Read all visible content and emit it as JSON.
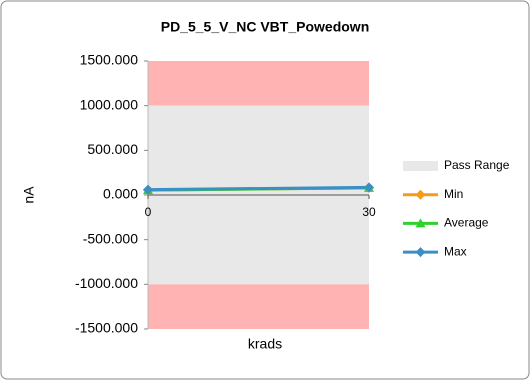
{
  "chart_data": {
    "type": "line",
    "title": "PD_5_5_V_NC VBT_Powedown",
    "y_label": "nA",
    "x_label": "krads",
    "x": [
      0,
      30
    ],
    "xlim": [
      0,
      30
    ],
    "xticks": [
      0,
      30
    ],
    "ylim": [
      -1500,
      1500
    ],
    "yticks": [
      {
        "value": -1500,
        "label": "-1500.000"
      },
      {
        "value": -1000,
        "label": "-1000.000"
      },
      {
        "value": -500,
        "label": "-500.000"
      },
      {
        "value": 0,
        "label": "0.000"
      },
      {
        "value": 500,
        "label": "500.000"
      },
      {
        "value": 1000,
        "label": "1000.000"
      },
      {
        "value": 1500,
        "label": "1500.000"
      }
    ],
    "pass_range": {
      "name": "Pass Range",
      "color": "#e8e8e8",
      "low": -1000,
      "high": 1000
    },
    "fail_color": "#ffb3b3",
    "legend": "right",
    "series": [
      {
        "name": "Min",
        "color": "#f59a1b",
        "marker": "diamond",
        "values": [
          55,
          80
        ]
      },
      {
        "name": "Average",
        "color": "#2ed12e",
        "marker": "triangle",
        "values": [
          55,
          80
        ]
      },
      {
        "name": "Max",
        "color": "#3b8fc4",
        "marker": "diamond",
        "values": [
          60,
          85
        ]
      }
    ]
  }
}
